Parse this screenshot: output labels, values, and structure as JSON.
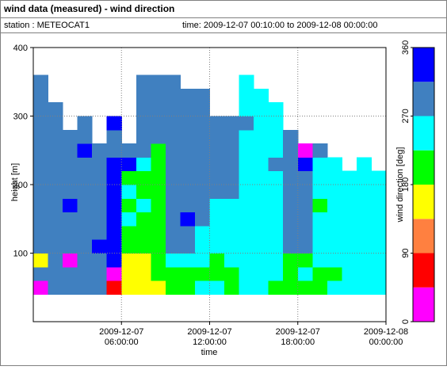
{
  "header": {
    "title": "wind data (measured) - wind direction",
    "station": "station : METEOCAT1",
    "time_range": "time: 2009-12-07 00:10:00 to 2009-12-08 00:00:00"
  },
  "chart_data": {
    "type": "heatmap",
    "x_label": "time",
    "y_label": "height [m]",
    "xlim": [
      "2009-12-07 00:00:00",
      "2009-12-08 00:00:00"
    ],
    "xticks": [
      "2009-12-07 06:00:00",
      "2009-12-07 12:00:00",
      "2009-12-07 18:00:00",
      "2009-12-08 00:00:00"
    ],
    "ylim": [
      0,
      400
    ],
    "yticks": [
      100,
      200,
      300,
      400
    ],
    "grid": true,
    "x": [
      "2009-12-07 00:00:00",
      "2009-12-07 01:00:00",
      "2009-12-07 02:00:00",
      "2009-12-07 03:00:00",
      "2009-12-07 04:00:00",
      "2009-12-07 05:00:00",
      "2009-12-07 06:00:00",
      "2009-12-07 07:00:00",
      "2009-12-07 08:00:00",
      "2009-12-07 09:00:00",
      "2009-12-07 10:00:00",
      "2009-12-07 11:00:00",
      "2009-12-07 12:00:00",
      "2009-12-07 13:00:00",
      "2009-12-07 14:00:00",
      "2009-12-07 15:00:00",
      "2009-12-07 16:00:00",
      "2009-12-07 17:00:00",
      "2009-12-07 18:00:00",
      "2009-12-07 19:00:00",
      "2009-12-07 20:00:00",
      "2009-12-07 21:00:00",
      "2009-12-07 22:00:00",
      "2009-12-07 23:00:00"
    ],
    "y": [
      40,
      60,
      80,
      100,
      120,
      140,
      160,
      180,
      200,
      220,
      240,
      260,
      280,
      300,
      320,
      340
    ],
    "cell_height": 20,
    "values": [
      [
        20,
        290,
        150,
        290,
        290,
        280,
        290,
        290,
        290,
        290,
        290,
        290,
        290,
        290,
        290,
        280
      ],
      [
        300,
        290,
        280,
        290,
        290,
        290,
        290,
        290,
        300,
        290,
        290,
        290,
        290,
        290,
        null,
        null
      ],
      [
        290,
        280,
        10,
        290,
        290,
        290,
        330,
        290,
        290,
        290,
        290,
        290,
        null,
        null,
        null,
        null
      ],
      [
        290,
        290,
        290,
        290,
        300,
        290,
        290,
        290,
        290,
        290,
        330,
        290,
        290,
        null,
        null,
        null
      ],
      [
        290,
        290,
        290,
        330,
        290,
        290,
        290,
        290,
        290,
        300,
        290,
        null,
        null,
        null,
        null,
        null
      ],
      [
        60,
        20,
        330,
        330,
        330,
        330,
        320,
        330,
        340,
        330,
        290,
        290,
        330,
        null,
        null,
        null
      ],
      [
        160,
        160,
        170,
        200,
        190,
        250,
        220,
        230,
        200,
        330,
        290,
        null,
        null,
        null,
        null,
        null
      ],
      [
        170,
        160,
        150,
        200,
        200,
        210,
        230,
        220,
        200,
        240,
        290,
        290,
        290,
        290,
        290,
        290
      ],
      [
        170,
        190,
        200,
        200,
        210,
        200,
        190,
        210,
        200,
        210,
        200,
        290,
        290,
        290,
        290,
        290
      ],
      [
        200,
        220,
        260,
        290,
        290,
        300,
        290,
        290,
        290,
        290,
        290,
        290,
        290,
        290,
        290,
        290
      ],
      [
        210,
        200,
        250,
        290,
        290,
        320,
        290,
        290,
        290,
        290,
        290,
        290,
        290,
        290,
        290,
        null
      ],
      [
        240,
        200,
        250,
        250,
        260,
        290,
        290,
        290,
        290,
        290,
        290,
        290,
        290,
        290,
        290,
        null
      ],
      [
        230,
        200,
        200,
        260,
        250,
        250,
        260,
        290,
        290,
        290,
        290,
        290,
        290,
        null,
        null,
        null
      ],
      [
        200,
        200,
        250,
        260,
        260,
        250,
        260,
        290,
        290,
        290,
        290,
        290,
        290,
        null,
        null,
        null
      ],
      [
        250,
        250,
        250,
        260,
        260,
        250,
        250,
        250,
        260,
        250,
        250,
        260,
        290,
        250,
        250,
        250
      ],
      [
        260,
        250,
        250,
        250,
        250,
        250,
        260,
        250,
        250,
        250,
        250,
        260,
        250,
        250,
        250,
        null
      ],
      [
        200,
        250,
        250,
        250,
        250,
        260,
        250,
        250,
        250,
        290,
        250,
        250,
        260,
        250,
        null,
        null
      ],
      [
        200,
        200,
        200,
        290,
        290,
        290,
        290,
        290,
        290,
        290,
        290,
        290,
        null,
        null,
        null,
        null
      ],
      [
        200,
        250,
        200,
        290,
        290,
        290,
        300,
        290,
        290,
        330,
        20,
        null,
        null,
        null,
        null,
        null
      ],
      [
        200,
        200,
        250,
        250,
        250,
        260,
        200,
        250,
        250,
        250,
        290,
        null,
        null,
        null,
        null,
        null
      ],
      [
        250,
        200,
        250,
        250,
        250,
        250,
        260,
        250,
        250,
        250,
        null,
        null,
        null,
        null,
        null,
        null
      ],
      [
        250,
        250,
        250,
        250,
        250,
        250,
        250,
        250,
        250,
        null,
        null,
        null,
        null,
        null,
        null,
        null
      ],
      [
        250,
        250,
        260,
        250,
        250,
        250,
        250,
        250,
        250,
        260,
        null,
        null,
        null,
        null,
        null,
        null
      ],
      [
        250,
        260,
        250,
        250,
        250,
        250,
        250,
        250,
        250,
        null,
        null,
        null,
        null,
        null,
        null,
        null
      ]
    ],
    "colorbar": {
      "label": "wind direction [deg]",
      "bounds": [
        0,
        45,
        90,
        135,
        180,
        225,
        270,
        315,
        360
      ],
      "colors": [
        "#ff00ff",
        "#ff0000",
        "#ff8040",
        "#ffff00",
        "#00ff00",
        "#00ffff",
        "#4080c0",
        "#0000ff"
      ],
      "lim": [
        0,
        360
      ],
      "ticks": [
        0,
        90,
        180,
        270,
        360
      ]
    }
  }
}
